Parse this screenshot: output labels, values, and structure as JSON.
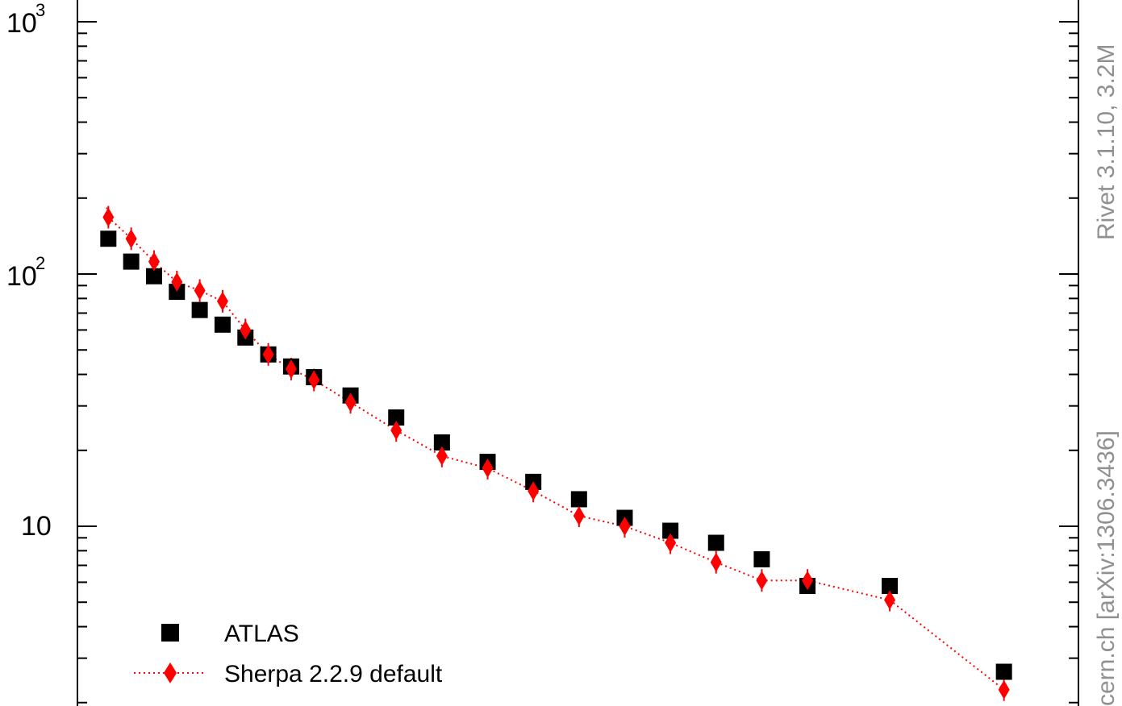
{
  "chart_data": {
    "type": "scatter",
    "y_scale": "log",
    "ylim": [
      2.6,
      1050
    ],
    "xlim": [
      0,
      1
    ],
    "y_tick_labels": [
      "10^3",
      "10^2",
      "10"
    ],
    "colors": {
      "data": "#000000",
      "mc": "#ff0000",
      "side_text": "#909090"
    },
    "series": [
      {
        "name": "ATLAS",
        "marker": "square",
        "x": [
          0.025,
          0.05,
          0.075,
          0.1,
          0.125,
          0.15,
          0.175,
          0.2,
          0.225,
          0.25,
          0.29,
          0.34,
          0.39,
          0.44,
          0.49,
          0.54,
          0.59,
          0.64,
          0.69,
          0.74,
          0.79,
          0.88,
          1.005
        ],
        "values": [
          138,
          112,
          98,
          85,
          72,
          63,
          56,
          48,
          43,
          39,
          33,
          27,
          21.5,
          18,
          15,
          12.8,
          10.8,
          9.6,
          8.6,
          7.4,
          5.8,
          5.8,
          2.65
        ]
      },
      {
        "name": "Sherpa 2.2.9 default",
        "marker": "diamond",
        "line": "dotted",
        "x": [
          0.025,
          0.05,
          0.075,
          0.1,
          0.125,
          0.15,
          0.175,
          0.2,
          0.225,
          0.25,
          0.29,
          0.34,
          0.39,
          0.44,
          0.49,
          0.54,
          0.59,
          0.64,
          0.69,
          0.74,
          0.79,
          0.88,
          1.005
        ],
        "values": [
          168,
          138,
          112,
          93,
          86,
          78,
          60,
          48,
          42,
          38,
          31,
          24,
          19,
          17,
          13.8,
          11,
          10,
          8.6,
          7.2,
          6.1,
          6.1,
          5.1,
          2.25
        ]
      }
    ]
  },
  "side_text": {
    "upper": "Rivet 3.1.10,  3.2M",
    "lower": "cern.ch [arXiv:1306.3436]"
  }
}
